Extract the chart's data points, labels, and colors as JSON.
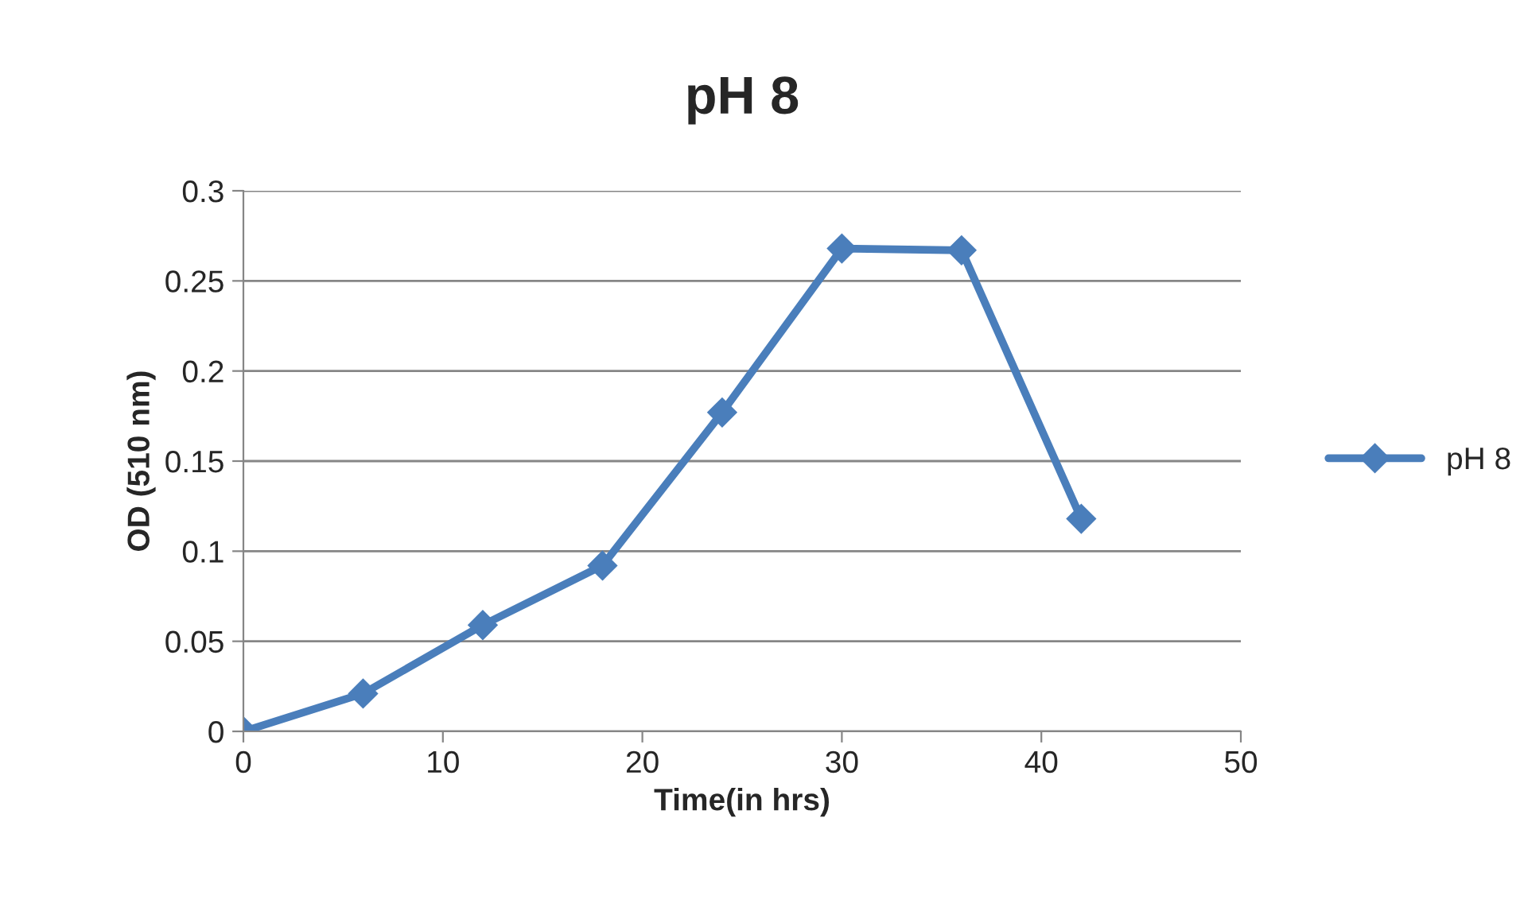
{
  "chart_data": {
    "type": "line",
    "title": "pH 8",
    "xlabel": "Time(in hrs)",
    "ylabel": "OD (510 nm)",
    "x": [
      0,
      6,
      12,
      18,
      24,
      30,
      36,
      42
    ],
    "series": [
      {
        "name": "pH 8",
        "color": "#4a7ebb",
        "values": [
          0,
          0.021,
          0.059,
          0.092,
          0.177,
          0.268,
          0.267,
          0.118
        ]
      }
    ],
    "xlim": [
      0,
      50
    ],
    "xticks": [
      0,
      10,
      20,
      30,
      40,
      50
    ],
    "ylim": [
      0,
      0.3
    ],
    "yticks": [
      0,
      0.05,
      0.1,
      0.15,
      0.2,
      0.25,
      0.3
    ],
    "grid": "y",
    "legend": "right",
    "marker": "diamond",
    "line_style": "solid"
  }
}
